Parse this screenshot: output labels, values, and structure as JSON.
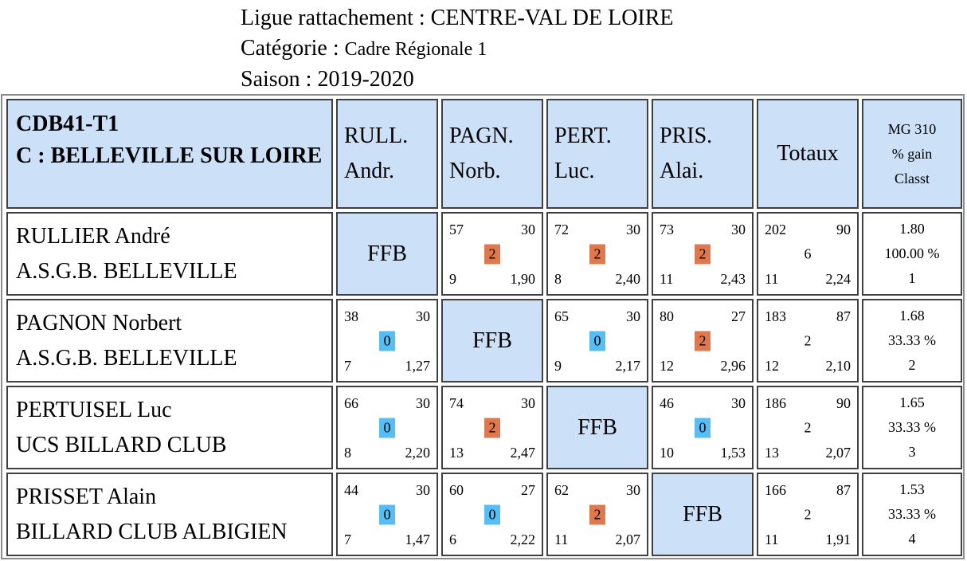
{
  "header": {
    "ligue_label": "Ligue rattachement : ",
    "ligue_value": "CENTRE-VAL DE LOIRE",
    "categorie_label": "Catégorie : ",
    "categorie_value": "Cadre Régionale 1",
    "saison_label": "Saison : ",
    "saison_value": "2019-2020"
  },
  "table_header": {
    "team_line1": "CDB41-T1",
    "team_line2": "C : BELLEVILLE SUR LOIRE",
    "columns": [
      {
        "line1": "RULL.",
        "line2": "Andr."
      },
      {
        "line1": "PAGN.",
        "line2": "Norb."
      },
      {
        "line1": "PERT.",
        "line2": "Luc."
      },
      {
        "line1": "PRIS.",
        "line2": "Alai."
      }
    ],
    "totaux": "Totaux",
    "mg_line1": "MG 310",
    "mg_line2": "% gain",
    "mg_line3": "Classt"
  },
  "ffb_label": "FFB",
  "rows": [
    {
      "name": "RULLIER André",
      "club": "A.S.G.B. BELLEVILLE",
      "matches": {
        "pagn": {
          "points": "57",
          "reprises_limit": "30",
          "result": "2",
          "innings": "9",
          "avg": "1,90"
        },
        "pert": {
          "points": "72",
          "reprises_limit": "30",
          "result": "2",
          "innings": "8",
          "avg": "2,40"
        },
        "pris": {
          "points": "73",
          "reprises_limit": "30",
          "result": "2",
          "innings": "11",
          "avg": "2,43"
        }
      },
      "totals": {
        "points": "202",
        "reprises": "90",
        "pts": "6",
        "innings": "11",
        "avg": "2,24"
      },
      "mg": {
        "mg": "1.80",
        "gain": "100.00 %",
        "classt": "1"
      }
    },
    {
      "name": "PAGNON Norbert",
      "club": "A.S.G.B. BELLEVILLE",
      "matches": {
        "rull": {
          "points": "38",
          "reprises_limit": "30",
          "result": "0",
          "innings": "7",
          "avg": "1,27"
        },
        "pert": {
          "points": "65",
          "reprises_limit": "30",
          "result": "0",
          "innings": "9",
          "avg": "2,17"
        },
        "pris": {
          "points": "80",
          "reprises_limit": "27",
          "result": "2",
          "innings": "12",
          "avg": "2,96"
        }
      },
      "totals": {
        "points": "183",
        "reprises": "87",
        "pts": "2",
        "innings": "12",
        "avg": "2,10"
      },
      "mg": {
        "mg": "1.68",
        "gain": "33.33 %",
        "classt": "2"
      }
    },
    {
      "name": "PERTUISEL Luc",
      "club": "UCS BILLARD CLUB",
      "matches": {
        "rull": {
          "points": "66",
          "reprises_limit": "30",
          "result": "0",
          "innings": "8",
          "avg": "2,20"
        },
        "pagn": {
          "points": "74",
          "reprises_limit": "30",
          "result": "2",
          "innings": "13",
          "avg": "2,47"
        },
        "pris": {
          "points": "46",
          "reprises_limit": "30",
          "result": "0",
          "innings": "10",
          "avg": "1,53"
        }
      },
      "totals": {
        "points": "186",
        "reprises": "90",
        "pts": "2",
        "innings": "13",
        "avg": "2,07"
      },
      "mg": {
        "mg": "1.65",
        "gain": "33.33 %",
        "classt": "3"
      }
    },
    {
      "name": "PRISSET Alain",
      "club": "BILLARD CLUB ALBIGIEN",
      "matches": {
        "rull": {
          "points": "44",
          "reprises_limit": "30",
          "result": "0",
          "innings": "7",
          "avg": "1,47"
        },
        "pagn": {
          "points": "60",
          "reprises_limit": "27",
          "result": "0",
          "innings": "6",
          "avg": "2,22"
        },
        "pert": {
          "points": "62",
          "reprises_limit": "30",
          "result": "2",
          "innings": "11",
          "avg": "2,07"
        }
      },
      "totals": {
        "points": "166",
        "reprises": "87",
        "pts": "2",
        "innings": "11",
        "avg": "1,91"
      },
      "mg": {
        "mg": "1.53",
        "gain": "33.33 %",
        "classt": "4"
      }
    }
  ],
  "colors": {
    "header_bg": "#cce0f8",
    "win": "#e0784e",
    "loss": "#56bdf5",
    "border": "#404040"
  }
}
